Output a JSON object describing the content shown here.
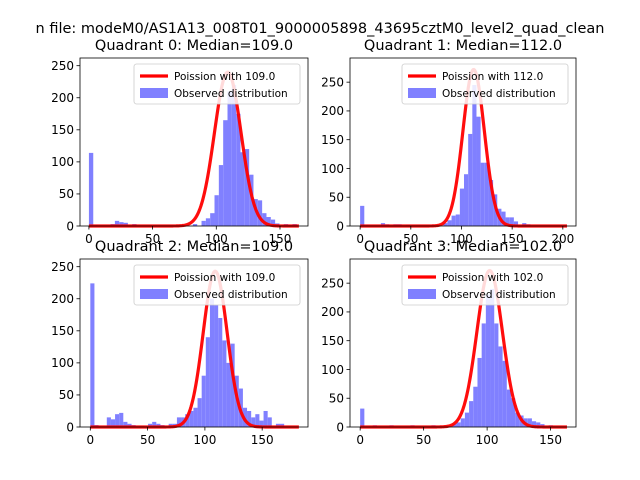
{
  "figure": {
    "suptitle": "n file: modeM0/AS1A13_008T01_9000005898_43695cztM0_level2_quad_clean"
  },
  "chart_data": [
    {
      "type": "histogram",
      "title": "Quadrant 0: Median=109.0",
      "xlim": [
        -7,
        172
      ],
      "ylim": [
        0,
        262
      ],
      "xticks": [
        0,
        50,
        100,
        150
      ],
      "yticks": [
        0,
        50,
        100,
        150,
        200,
        250
      ],
      "legend": "top-right",
      "series": [
        {
          "name": "Poission with 109.0",
          "kind": "line",
          "color": "#ff0000",
          "mean": 109.0,
          "peak": 240
        },
        {
          "name": "Observed distribution",
          "kind": "bars",
          "color": "#8080ff",
          "bin_width": 3.4,
          "bins": [
            [
              0,
              114
            ],
            [
              3.4,
              2
            ],
            [
              17,
              3
            ],
            [
              20.4,
              8
            ],
            [
              23.8,
              6
            ],
            [
              27.2,
              5
            ],
            [
              34,
              3
            ],
            [
              81.6,
              3
            ],
            [
              88.4,
              8
            ],
            [
              91.8,
              12
            ],
            [
              95.2,
              20
            ],
            [
              98.6,
              48
            ],
            [
              102,
              95
            ],
            [
              105.4,
              165
            ],
            [
              108.8,
              210
            ],
            [
              112.2,
              220
            ],
            [
              115.6,
              175
            ],
            [
              119,
              115
            ],
            [
              122.4,
              120
            ],
            [
              125.8,
              80
            ],
            [
              129.2,
              42
            ],
            [
              132.6,
              40
            ],
            [
              136,
              20
            ],
            [
              139.4,
              14
            ],
            [
              142.8,
              10
            ],
            [
              146.2,
              4
            ],
            [
              153,
              3
            ],
            [
              156.4,
              2
            ],
            [
              159.8,
              3
            ]
          ]
        }
      ]
    },
    {
      "type": "histogram",
      "title": "Quadrant 1: Median=112.0",
      "xlim": [
        -10,
        213
      ],
      "ylim": [
        0,
        292
      ],
      "xticks": [
        0,
        50,
        100,
        150,
        200
      ],
      "yticks": [
        0,
        50,
        100,
        150,
        200,
        250
      ],
      "legend": "top-right",
      "series": [
        {
          "name": "Poission with 112.0",
          "kind": "line",
          "color": "#ff0000",
          "mean": 112.0,
          "peak": 272
        },
        {
          "name": "Observed distribution",
          "kind": "bars",
          "color": "#8080ff",
          "bin_width": 4.1,
          "bins": [
            [
              0,
              35
            ],
            [
              4.1,
              2
            ],
            [
              20.5,
              5
            ],
            [
              24.6,
              3
            ],
            [
              32.8,
              3
            ],
            [
              36.9,
              3
            ],
            [
              45.1,
              2
            ],
            [
              69.7,
              2
            ],
            [
              82,
              5
            ],
            [
              86.1,
              10
            ],
            [
              90.2,
              18
            ],
            [
              94.3,
              20
            ],
            [
              98.4,
              65
            ],
            [
              102.5,
              90
            ],
            [
              106.6,
              160
            ],
            [
              110.7,
              245
            ],
            [
              114.8,
              190
            ],
            [
              118.9,
              110
            ],
            [
              123,
              110
            ],
            [
              127.1,
              80
            ],
            [
              131.2,
              55
            ],
            [
              135.3,
              30
            ],
            [
              139.4,
              25
            ],
            [
              143.5,
              15
            ],
            [
              147.6,
              15
            ],
            [
              151.7,
              8
            ],
            [
              159.9,
              5
            ],
            [
              164,
              3
            ]
          ]
        }
      ]
    },
    {
      "type": "histogram",
      "title": "Quadrant 2: Median=109.0",
      "xlim": [
        -9,
        190
      ],
      "ylim": [
        0,
        262
      ],
      "xticks": [
        0,
        50,
        100,
        150
      ],
      "yticks": [
        0,
        50,
        100,
        150,
        200,
        250
      ],
      "legend": "top-right",
      "series": [
        {
          "name": "Poission with 109.0",
          "kind": "line",
          "color": "#ff0000",
          "mean": 109.0,
          "peak": 243
        },
        {
          "name": "Observed distribution",
          "kind": "bars",
          "color": "#8080ff",
          "bin_width": 3.6,
          "bins": [
            [
              0,
              224
            ],
            [
              3.6,
              3
            ],
            [
              14.4,
              15
            ],
            [
              18,
              12
            ],
            [
              21.6,
              20
            ],
            [
              25.2,
              22
            ],
            [
              28.8,
              8
            ],
            [
              32.4,
              5
            ],
            [
              36,
              3
            ],
            [
              43.2,
              2
            ],
            [
              50.4,
              5
            ],
            [
              54,
              8
            ],
            [
              57.6,
              5
            ],
            [
              61.2,
              3
            ],
            [
              68.4,
              5
            ],
            [
              72,
              5
            ],
            [
              75.6,
              15
            ],
            [
              79.2,
              15
            ],
            [
              82.8,
              20
            ],
            [
              86.4,
              25
            ],
            [
              90,
              30
            ],
            [
              93.6,
              45
            ],
            [
              97.2,
              80
            ],
            [
              100.8,
              140
            ],
            [
              104.4,
              200
            ],
            [
              108,
              190
            ],
            [
              111.6,
              170
            ],
            [
              115.2,
              135
            ],
            [
              118.8,
              100
            ],
            [
              122.4,
              130
            ],
            [
              126,
              80
            ],
            [
              129.6,
              60
            ],
            [
              133.2,
              30
            ],
            [
              136.8,
              25
            ],
            [
              140.4,
              15
            ],
            [
              144,
              20
            ],
            [
              147.6,
              10
            ],
            [
              151.2,
              25
            ],
            [
              154.8,
              15
            ],
            [
              162,
              5
            ],
            [
              165.6,
              5
            ]
          ]
        }
      ]
    },
    {
      "type": "histogram",
      "title": "Quadrant 3: Median=102.0",
      "xlim": [
        -8,
        170
      ],
      "ylim": [
        0,
        292
      ],
      "xticks": [
        0,
        50,
        100,
        150
      ],
      "yticks": [
        0,
        50,
        100,
        150,
        200,
        250
      ],
      "legend": "top-right",
      "series": [
        {
          "name": "Poission with 102.0",
          "kind": "line",
          "color": "#ff0000",
          "mean": 102.0,
          "peak": 272
        },
        {
          "name": "Observed distribution",
          "kind": "bars",
          "color": "#8080ff",
          "bin_width": 3.3,
          "bins": [
            [
              0,
              32
            ],
            [
              9.9,
              3
            ],
            [
              23.1,
              3
            ],
            [
              39.6,
              3
            ],
            [
              56.1,
              3
            ],
            [
              72.6,
              5
            ],
            [
              75.9,
              8
            ],
            [
              79.2,
              15
            ],
            [
              82.5,
              25
            ],
            [
              85.8,
              45
            ],
            [
              89.1,
              70
            ],
            [
              92.4,
              120
            ],
            [
              95.7,
              180
            ],
            [
              99,
              230
            ],
            [
              102.3,
              240
            ],
            [
              105.6,
              180
            ],
            [
              108.9,
              140
            ],
            [
              112.2,
              115
            ],
            [
              115.5,
              65
            ],
            [
              118.8,
              50
            ],
            [
              122.1,
              25
            ],
            [
              125.4,
              20
            ],
            [
              128.7,
              15
            ],
            [
              132,
              15
            ],
            [
              135.3,
              10
            ],
            [
              138.6,
              8
            ],
            [
              141.9,
              5
            ],
            [
              148.5,
              3
            ]
          ]
        }
      ]
    }
  ]
}
